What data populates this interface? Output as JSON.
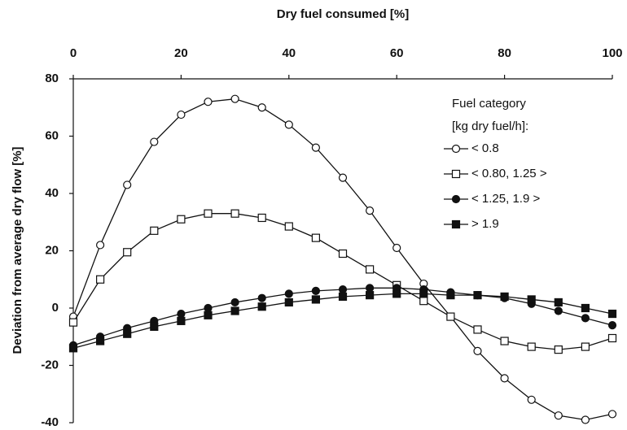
{
  "chart_data": {
    "type": "line",
    "title": "Dry fuel consumed [%]",
    "y_label": "Deviation from average dry flow [%]",
    "legend_title": [
      "Fuel category",
      "[kg dry fuel/h]:"
    ],
    "legend_position": "right",
    "xaxis_position": "top",
    "x": [
      0,
      5,
      10,
      15,
      20,
      25,
      30,
      35,
      40,
      45,
      50,
      55,
      60,
      65,
      70,
      75,
      80,
      85,
      90,
      95,
      100
    ],
    "xlim": [
      0,
      100
    ],
    "xticks": [
      0,
      20,
      40,
      60,
      80,
      100
    ],
    "ylim": [
      -40,
      80
    ],
    "yticks": [
      80,
      60,
      40,
      20,
      0,
      -20,
      -40
    ],
    "series": [
      {
        "name": "< 0.8",
        "color": "#111111",
        "marker": "circle",
        "filled": false,
        "values": [
          -3,
          22,
          43,
          58,
          67.5,
          72,
          73,
          70,
          64,
          56,
          45.5,
          34,
          21,
          8.5,
          -3,
          -15,
          -24.5,
          -32,
          -37.5,
          -39,
          -37
        ]
      },
      {
        "name": "< 0.80, 1.25 >",
        "color": "#111111",
        "marker": "square",
        "filled": false,
        "values": [
          -5,
          10,
          19.5,
          27,
          31,
          33,
          33,
          31.5,
          28.5,
          24.5,
          19,
          13.5,
          8,
          2.5,
          -3,
          -7.5,
          -11.5,
          -13.5,
          -14.5,
          -13.5,
          -10.5
        ]
      },
      {
        "name": "< 1.25, 1.9 >",
        "color": "#111111",
        "marker": "circle",
        "filled": true,
        "values": [
          -13,
          -10,
          -7,
          -4.5,
          -2,
          0,
          2,
          3.5,
          5,
          6,
          6.5,
          7,
          7,
          6.5,
          5.5,
          4.5,
          3.5,
          1.5,
          -1,
          -3.5,
          -6
        ]
      },
      {
        "name": "> 1.9",
        "color": "#111111",
        "marker": "square",
        "filled": true,
        "values": [
          -14,
          -11.5,
          -9,
          -6.5,
          -4.5,
          -2.5,
          -1,
          0.5,
          2,
          3,
          4,
          4.5,
          5,
          5,
          4.5,
          4.5,
          4,
          3,
          2,
          0,
          -2
        ]
      }
    ]
  }
}
